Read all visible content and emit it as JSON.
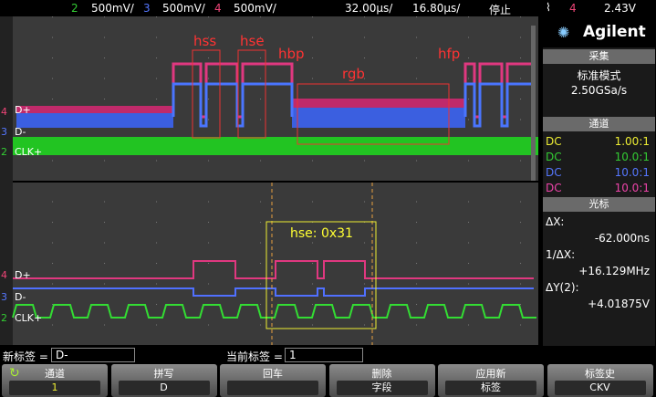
{
  "status_bar": {
    "channels": [
      {
        "number": "2",
        "scale": "500mV/"
      },
      {
        "number": "3",
        "scale": "500mV/"
      },
      {
        "number": "4",
        "scale": "500mV/"
      }
    ],
    "timebase": "32.00μs/",
    "delay": "16.80μs/",
    "run_state": "停止",
    "trigger_channel": "4",
    "trigger_level": "2.43V"
  },
  "brand": "Agilent",
  "acquisition": {
    "title": "采集",
    "mode": "标准模式",
    "rate": "2.50GSa/s"
  },
  "channels_panel": {
    "title": "通道",
    "rows": [
      {
        "coupling": "DC",
        "probe": "1.00:1"
      },
      {
        "coupling": "DC",
        "probe": "10.0:1"
      },
      {
        "coupling": "DC",
        "probe": "10.0:1"
      },
      {
        "coupling": "DC",
        "probe": "10.0:1"
      }
    ]
  },
  "cursors": {
    "title": "光标",
    "dx_label": "ΔX:",
    "dx": "-62.000ns",
    "inv_label": "1/ΔX:",
    "inv": "+16.129MHz",
    "dy_label": "ΔY(2):",
    "dy": "+4.01875V"
  },
  "waveform": {
    "annotations": [
      "hss",
      "hse",
      "hbp",
      "rgb",
      "hfp"
    ],
    "zoom_annotation": "hse: 0x31",
    "labels": [
      "D+",
      "D-",
      "CLK+"
    ],
    "channel_markers": [
      "4",
      "3",
      "2"
    ]
  },
  "label_bar": {
    "new_label": "新标签 =",
    "new_value": "D-",
    "current_label": "当前标签 =",
    "current_value": "1"
  },
  "softkeys": [
    {
      "title": "通道",
      "value": "1"
    },
    {
      "title": "拼写",
      "value": "D"
    },
    {
      "title": "回车"
    },
    {
      "title": "删除",
      "value": "字段"
    },
    {
      "title": "应用新",
      "value": "标签"
    },
    {
      "title": "标签史",
      "value": "CKV"
    }
  ]
}
